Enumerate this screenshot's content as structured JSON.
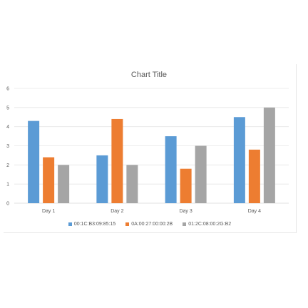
{
  "chart_data": {
    "type": "bar",
    "title": "Chart Title",
    "categories": [
      "Day 1",
      "Day 2",
      "Day 3",
      "Day 4"
    ],
    "series": [
      {
        "name": "00:1C:B3:09:85:15",
        "color": "#5b9bd5",
        "values": [
          4.3,
          2.5,
          3.5,
          4.5
        ]
      },
      {
        "name": "0A:00:27:00:00:2B",
        "color": "#ed7d31",
        "values": [
          2.4,
          4.4,
          1.8,
          2.8
        ]
      },
      {
        "name": "01:2C:08:00:2G:B2",
        "color": "#a5a5a5",
        "values": [
          2.0,
          2.0,
          3.0,
          5.0
        ]
      }
    ],
    "ylim": [
      0,
      6
    ],
    "yticks": [
      "0",
      "1",
      "2",
      "3",
      "4",
      "5",
      "6"
    ],
    "grid": true,
    "legend_position": "bottom"
  }
}
